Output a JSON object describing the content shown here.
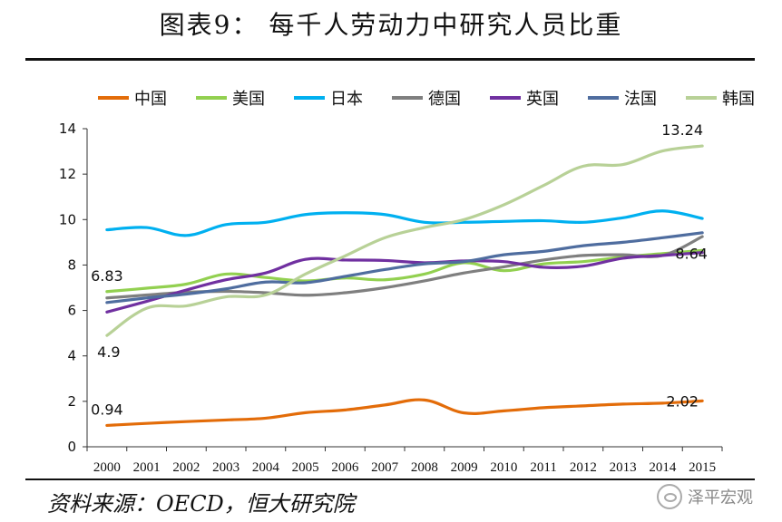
{
  "page": {
    "title": "图表9：  每千人劳动力中研究人员比重",
    "source": "资料来源：OECD，恒大研究院",
    "watermark": "泽平宏观"
  },
  "chart_data": {
    "type": "line",
    "title": "图表9：  每千人劳动力中研究人员比重",
    "xlabel": "",
    "ylabel": "",
    "ylim": [
      0,
      14
    ],
    "yticks": [
      0,
      2,
      4,
      6,
      8,
      10,
      12,
      14
    ],
    "grid": false,
    "legend_position": "top",
    "x": [
      "2000",
      "2001",
      "2002",
      "2003",
      "2004",
      "2005",
      "2006",
      "2007",
      "2008",
      "2009",
      "2010",
      "2011",
      "2012",
      "2013",
      "2014",
      "2015"
    ],
    "series": [
      {
        "name": "中国",
        "color": "#E36C09",
        "values": [
          0.94,
          1.03,
          1.11,
          1.18,
          1.26,
          1.5,
          1.62,
          1.84,
          2.06,
          1.49,
          1.58,
          1.72,
          1.8,
          1.88,
          1.92,
          2.02
        ]
      },
      {
        "name": "美国",
        "color": "#92D050",
        "values": [
          6.83,
          6.98,
          7.16,
          7.6,
          7.45,
          7.3,
          7.43,
          7.35,
          7.6,
          8.1,
          7.75,
          8.05,
          8.15,
          8.35,
          8.5,
          8.64
        ]
      },
      {
        "name": "日本",
        "color": "#00B0F0",
        "values": [
          9.55,
          9.65,
          9.3,
          9.78,
          9.88,
          10.22,
          10.3,
          10.22,
          9.88,
          9.88,
          9.92,
          9.95,
          9.88,
          10.08,
          10.38,
          10.05
        ]
      },
      {
        "name": "德国",
        "color": "#7F7F7F",
        "values": [
          6.55,
          6.68,
          6.8,
          6.84,
          6.78,
          6.67,
          6.78,
          7.0,
          7.3,
          7.65,
          7.92,
          8.22,
          8.42,
          8.45,
          8.42,
          9.25
        ]
      },
      {
        "name": "英国",
        "color": "#7030A0",
        "values": [
          5.93,
          6.4,
          6.9,
          7.35,
          7.65,
          8.25,
          8.22,
          8.2,
          8.1,
          8.18,
          8.15,
          7.9,
          7.95,
          8.3,
          8.42,
          8.55
        ]
      },
      {
        "name": "法国",
        "color": "#4F6D9F",
        "values": [
          6.35,
          6.55,
          6.72,
          6.95,
          7.25,
          7.22,
          7.5,
          7.8,
          8.05,
          8.15,
          8.45,
          8.6,
          8.85,
          9.0,
          9.2,
          9.42
        ]
      },
      {
        "name": "韩国",
        "color": "#B8D197",
        "values": [
          4.9,
          6.1,
          6.2,
          6.6,
          6.68,
          7.6,
          8.4,
          9.2,
          9.65,
          10.0,
          10.65,
          11.5,
          12.35,
          12.42,
          13.02,
          13.24
        ]
      }
    ],
    "annotations": [
      {
        "series": "美国",
        "x": "2000",
        "label": "6.83"
      },
      {
        "series": "韩国",
        "x": "2000",
        "label": "4.9"
      },
      {
        "series": "中国",
        "x": "2000",
        "label": "0.94"
      },
      {
        "series": "韩国",
        "x": "2015",
        "label": "13.24"
      },
      {
        "series": "美国",
        "x": "2015",
        "label": "8.64"
      },
      {
        "series": "中国",
        "x": "2015",
        "label": "2.02"
      }
    ]
  }
}
